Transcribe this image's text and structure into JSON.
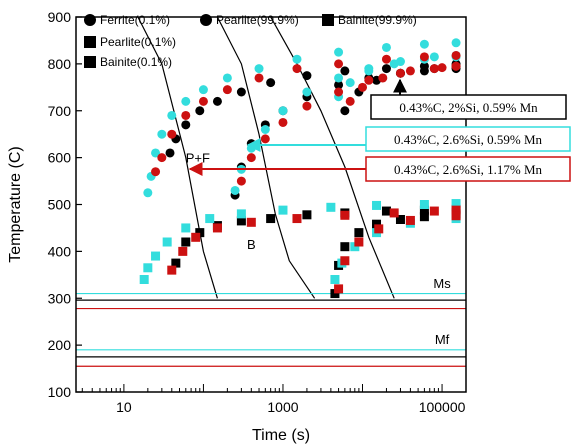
{
  "chart_data": {
    "type": "scatter",
    "xlabel": "Time (s)",
    "ylabel": "Temperature (C)",
    "xscale": "log",
    "xlim": [
      2.5,
      200000
    ],
    "ylim": [
      100,
      900
    ],
    "xticks": [
      10,
      1000,
      100000
    ],
    "xtick_labels": [
      "10",
      "1000",
      "100000"
    ],
    "yticks": [
      100,
      200,
      300,
      400,
      500,
      600,
      700,
      800,
      900
    ],
    "grid": false,
    "legend_position": "top-left",
    "legend": [
      {
        "label": "Ferrite(0.1%)",
        "marker": "circle"
      },
      {
        "label": "Pearlite(99.9%)",
        "marker": "circle"
      },
      {
        "label": "Bainite(99.9%)",
        "marker": "square"
      },
      {
        "label": "Pearlite(0.1%)",
        "marker": "square"
      },
      {
        "label": "Bainite(0.1%)",
        "marker": "square"
      }
    ],
    "series": [
      {
        "composition": "0.43%C, 2%Si, 0.59% Mn",
        "color": "#000000",
        "ferrite_start": [
          [
            38,
            610
          ],
          [
            45,
            640
          ],
          [
            60,
            670
          ],
          [
            90,
            700
          ],
          [
            150,
            720
          ],
          [
            300,
            740
          ],
          [
            700,
            760
          ],
          [
            2000,
            775
          ],
          [
            6000,
            785
          ],
          [
            20000,
            790
          ],
          [
            60000,
            795
          ],
          [
            150000,
            800
          ]
        ],
        "pearlite_start": [
          [
            250,
            520
          ],
          [
            300,
            580
          ],
          [
            400,
            630
          ],
          [
            600,
            670
          ],
          [
            1000,
            700
          ],
          [
            2000,
            730
          ],
          [
            5000,
            755
          ],
          [
            12000,
            770
          ],
          [
            30000,
            780
          ],
          [
            80000,
            790
          ],
          [
            150000,
            795
          ]
        ],
        "pearlite_finish": [
          [
            6000,
            700
          ],
          [
            9000,
            740
          ],
          [
            15000,
            765
          ],
          [
            30000,
            780
          ],
          [
            60000,
            785
          ],
          [
            150000,
            790
          ]
        ],
        "bainite_start": [
          [
            45,
            375
          ],
          [
            60,
            420
          ],
          [
            90,
            440
          ],
          [
            150,
            455
          ],
          [
            300,
            465
          ],
          [
            700,
            470
          ],
          [
            2000,
            478
          ],
          [
            6000,
            482
          ],
          [
            20000,
            486
          ],
          [
            60000,
            488
          ],
          [
            150000,
            490
          ]
        ],
        "bainite_finish": [
          [
            4500,
            310
          ],
          [
            5000,
            370
          ],
          [
            6000,
            410
          ],
          [
            9000,
            440
          ],
          [
            15000,
            458
          ],
          [
            30000,
            468
          ],
          [
            60000,
            474
          ],
          [
            150000,
            480
          ]
        ]
      },
      {
        "composition": "0.43%C, 2.6%Si, 0.59% Mn",
        "color": "#33dddd",
        "ferrite_start": [
          [
            20,
            525
          ],
          [
            22,
            560
          ],
          [
            25,
            610
          ],
          [
            30,
            650
          ],
          [
            40,
            690
          ],
          [
            60,
            720
          ],
          [
            100,
            745
          ],
          [
            200,
            770
          ],
          [
            500,
            790
          ],
          [
            1500,
            810
          ],
          [
            5000,
            825
          ],
          [
            20000,
            835
          ],
          [
            60000,
            842
          ],
          [
            150000,
            845
          ]
        ],
        "pearlite_start": [
          [
            250,
            530
          ],
          [
            300,
            575
          ],
          [
            400,
            620
          ],
          [
            600,
            660
          ],
          [
            1000,
            700
          ],
          [
            2000,
            740
          ],
          [
            5000,
            770
          ],
          [
            12000,
            790
          ],
          [
            30000,
            805
          ],
          [
            80000,
            815
          ],
          [
            150000,
            818
          ]
        ],
        "pearlite_finish": [
          [
            5000,
            730
          ],
          [
            7000,
            760
          ],
          [
            12000,
            785
          ],
          [
            25000,
            800
          ],
          [
            60000,
            810
          ],
          [
            150000,
            815
          ]
        ],
        "bainite_start": [
          [
            18,
            340
          ],
          [
            20,
            365
          ],
          [
            25,
            390
          ],
          [
            35,
            420
          ],
          [
            60,
            450
          ],
          [
            120,
            470
          ],
          [
            300,
            480
          ],
          [
            1000,
            488
          ],
          [
            4000,
            494
          ],
          [
            15000,
            498
          ],
          [
            60000,
            500
          ],
          [
            150000,
            502
          ]
        ],
        "bainite_finish": [
          [
            4500,
            340
          ],
          [
            5500,
            375
          ],
          [
            8000,
            410
          ],
          [
            15000,
            440
          ],
          [
            40000,
            460
          ],
          [
            150000,
            470
          ]
        ]
      },
      {
        "composition": "0.43%C, 2.6%Si, 1.17% Mn",
        "color": "#cc1111",
        "ferrite_start": [
          [
            25,
            570
          ],
          [
            30,
            600
          ],
          [
            40,
            650
          ],
          [
            60,
            690
          ],
          [
            100,
            720
          ],
          [
            200,
            745
          ],
          [
            500,
            770
          ],
          [
            1500,
            790
          ],
          [
            5000,
            800
          ],
          [
            20000,
            810
          ],
          [
            60000,
            815
          ],
          [
            150000,
            818
          ]
        ],
        "pearlite_start": [
          [
            300,
            550
          ],
          [
            400,
            600
          ],
          [
            600,
            640
          ],
          [
            1000,
            675
          ],
          [
            2000,
            710
          ],
          [
            5000,
            740
          ],
          [
            12000,
            765
          ],
          [
            30000,
            780
          ],
          [
            80000,
            790
          ],
          [
            150000,
            795
          ]
        ],
        "pearlite_finish": [
          [
            7000,
            720
          ],
          [
            10000,
            750
          ],
          [
            18000,
            770
          ],
          [
            40000,
            785
          ],
          [
            100000,
            792
          ],
          [
            150000,
            795
          ]
        ],
        "bainite_start": [
          [
            40,
            360
          ],
          [
            55,
            400
          ],
          [
            80,
            430
          ],
          [
            150,
            450
          ],
          [
            400,
            462
          ],
          [
            1500,
            470
          ],
          [
            6000,
            477
          ],
          [
            25000,
            482
          ],
          [
            80000,
            486
          ],
          [
            150000,
            488
          ]
        ],
        "bainite_finish": [
          [
            5000,
            320
          ],
          [
            6000,
            380
          ],
          [
            9000,
            420
          ],
          [
            16000,
            448
          ],
          [
            40000,
            466
          ],
          [
            150000,
            476
          ]
        ]
      }
    ],
    "horizontal_lines": [
      {
        "label": "Ms",
        "values": [
          {
            "color": "#33dddd",
            "y": 310
          },
          {
            "color": "#000000",
            "y": 296
          },
          {
            "color": "#cc1111",
            "y": 278
          }
        ]
      },
      {
        "label": "Mf",
        "values": [
          {
            "color": "#33dddd",
            "y": 190
          },
          {
            "color": "#000000",
            "y": 175
          },
          {
            "color": "#cc1111",
            "y": 155
          }
        ]
      }
    ],
    "cooling_curves": [
      {
        "points": [
          [
            15,
            900
          ],
          [
            30,
            800
          ],
          [
            60,
            600
          ],
          [
            100,
            400
          ],
          [
            150,
            300
          ]
        ]
      },
      {
        "points": [
          [
            150,
            900
          ],
          [
            300,
            800
          ],
          [
            500,
            650
          ],
          [
            800,
            480
          ],
          [
            1200,
            380
          ],
          [
            2500,
            300
          ]
        ]
      },
      {
        "points": [
          [
            700,
            900
          ],
          [
            1500,
            800
          ],
          [
            3000,
            700
          ],
          [
            6000,
            580
          ],
          [
            12000,
            430
          ],
          [
            25000,
            300
          ]
        ]
      }
    ],
    "region_labels": [
      {
        "text": "P+F",
        "x": 85,
        "y": 590
      },
      {
        "text": "B",
        "x": 400,
        "y": 405
      },
      {
        "text": "Ms",
        "x": 100000,
        "y": 322
      },
      {
        "text": "Mf",
        "x": 100000,
        "y": 202
      }
    ],
    "annotations": [
      {
        "text": "0.43%C, 2%Si, 0.59% Mn",
        "color": "#000000",
        "target_x": 70000,
        "target_y": 790
      },
      {
        "text": "0.43%C, 2.6%Si, 0.59% Mn",
        "color": "#33dddd",
        "target_x": 320,
        "target_y": 620
      },
      {
        "text": "0.43%C, 2.6%Si, 1.17% Mn",
        "color": "#cc1111",
        "target_x": 55,
        "target_y": 575
      }
    ]
  }
}
